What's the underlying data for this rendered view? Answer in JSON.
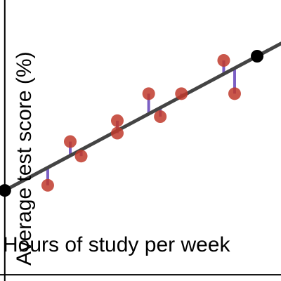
{
  "chart_data": {
    "type": "scatter",
    "xlabel": "Hours of study per week",
    "ylabel": "Average test score (%)",
    "grid": false,
    "points": [
      {
        "x": 3.15,
        "y": 5.73
      },
      {
        "x": 4.8,
        "y": 8.53
      },
      {
        "x": 5.6,
        "y": 7.6
      },
      {
        "x": 8.25,
        "y": 9.87
      },
      {
        "x": 8.25,
        "y": 9.07
      },
      {
        "x": 10.55,
        "y": 11.6
      },
      {
        "x": 11.4,
        "y": 10.13
      },
      {
        "x": 12.95,
        "y": 11.6
      },
      {
        "x": 16.05,
        "y": 13.73
      },
      {
        "x": 16.85,
        "y": 11.6
      }
    ],
    "line_endpoints": [
      {
        "x": 0.0,
        "y": 5.4
      },
      {
        "x": 18.5,
        "y": 14.0
      }
    ],
    "xlim": [
      -0.35,
      20.25
    ],
    "ylim": [
      -0.4,
      17.6
    ],
    "colors": {
      "point": "#c0392b",
      "residual": "#7b5fc4",
      "line": "#444444",
      "endpoint": "#000000",
      "axis": "#000000"
    }
  }
}
